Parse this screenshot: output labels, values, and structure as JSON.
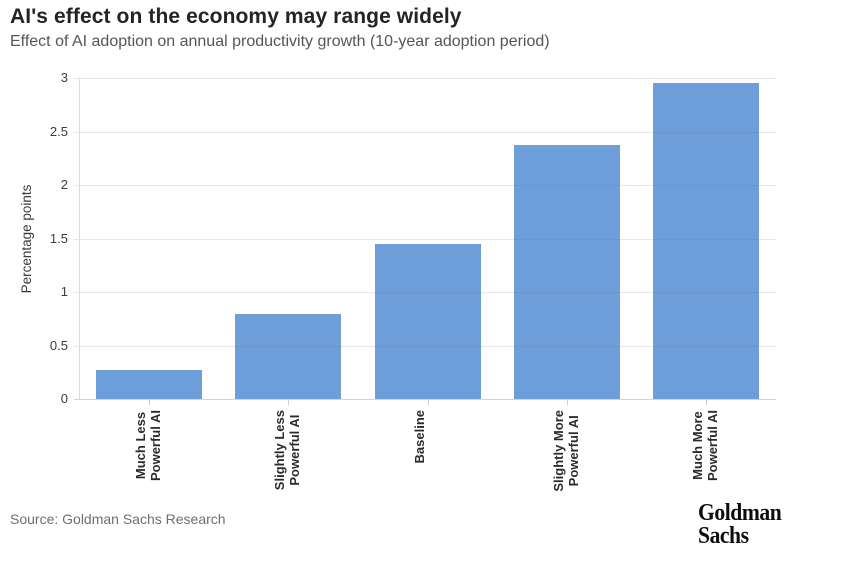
{
  "header": {
    "title": "AI's effect on the economy may range widely",
    "subtitle": "Effect of AI adoption on annual productivity growth (10-year adoption period)"
  },
  "chart_data": {
    "type": "bar",
    "title": "AI's effect on the economy may range widely",
    "subtitle": "Effect of AI adoption on annual productivity growth (10-year adoption period)",
    "categories": [
      "Much Less\nPowerful AI",
      "Slightly Less\nPowerful AI",
      "Baseline",
      "Slightly More\nPowerful AI",
      "Much More\nPowerful AI"
    ],
    "values": [
      0.27,
      0.79,
      1.45,
      2.37,
      2.95
    ],
    "xlabel": "",
    "ylabel": "Percentage points",
    "ylim": [
      0,
      3
    ],
    "yticks": [
      0,
      0.5,
      1,
      1.5,
      2,
      2.5,
      3
    ],
    "ytick_labels": [
      "0",
      "0.5",
      "1",
      "1.5",
      "2",
      "2.5",
      "3"
    ],
    "grid": true,
    "legend": "none",
    "bar_color": "#6d9ed9"
  },
  "footer": {
    "source": "Source: Goldman Sachs Research",
    "logo_line1": "Goldman",
    "logo_line2": "Sachs"
  }
}
